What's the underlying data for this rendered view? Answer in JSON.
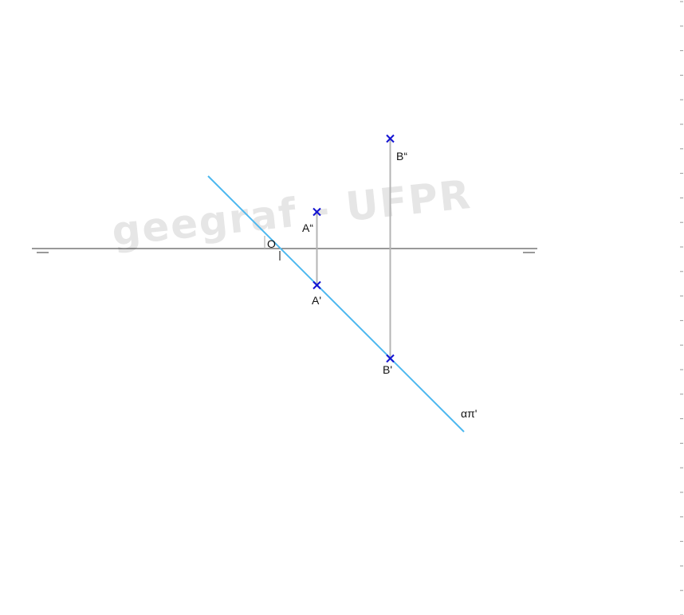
{
  "watermark": "geegraf - UFPR",
  "colors": {
    "ground_line": "#333333",
    "recall_line": "#b4b4b4",
    "trace_line": "#4db8ef",
    "point_mark": "#1414d2",
    "label_text": "#111111",
    "watermark_text": "#e6e6e6",
    "edge_ticks": "#999999"
  },
  "labels": {
    "origin": "O",
    "a_vertical": "A“",
    "a_horizontal": "A'",
    "b_vertical": "B“",
    "b_horizontal": "B'",
    "trace": "απ'"
  },
  "points": [
    {
      "id": "A-vertical",
      "name": "A“",
      "kind": "vertical-projection"
    },
    {
      "id": "A-horizontal",
      "name": "A'",
      "kind": "horizontal-projection"
    },
    {
      "id": "B-vertical",
      "name": "B“",
      "kind": "vertical-projection"
    },
    {
      "id": "B-horizontal",
      "name": "B'",
      "kind": "horizontal-projection"
    }
  ]
}
